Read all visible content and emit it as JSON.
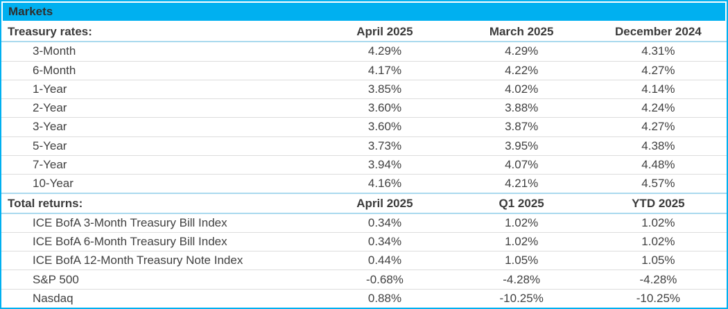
{
  "title": "Markets",
  "colors": {
    "accent": "#00B0F0",
    "section_divider": "#A9D9EE",
    "row_divider": "#DCDCDC",
    "text": "#404040"
  },
  "sections": [
    {
      "header": {
        "label": "Treasury rates:",
        "columns": [
          "April 2025",
          "March 2025",
          "December 2024"
        ]
      },
      "rows": [
        {
          "label": "3-Month",
          "values": [
            "4.29%",
            "4.29%",
            "4.31%"
          ]
        },
        {
          "label": "6-Month",
          "values": [
            "4.17%",
            "4.22%",
            "4.27%"
          ]
        },
        {
          "label": "1-Year",
          "values": [
            "3.85%",
            "4.02%",
            "4.14%"
          ]
        },
        {
          "label": "2-Year",
          "values": [
            "3.60%",
            "3.88%",
            "4.24%"
          ]
        },
        {
          "label": "3-Year",
          "values": [
            "3.60%",
            "3.87%",
            "4.27%"
          ]
        },
        {
          "label": "5-Year",
          "values": [
            "3.73%",
            "3.95%",
            "4.38%"
          ]
        },
        {
          "label": "7-Year",
          "values": [
            "3.94%",
            "4.07%",
            "4.48%"
          ]
        },
        {
          "label": "10-Year",
          "values": [
            "4.16%",
            "4.21%",
            "4.57%"
          ]
        }
      ]
    },
    {
      "header": {
        "label": "Total returns:",
        "columns": [
          "April 2025",
          "Q1 2025",
          "YTD 2025"
        ]
      },
      "rows": [
        {
          "label": "ICE BofA 3-Month Treasury Bill Index",
          "values": [
            "0.34%",
            "1.02%",
            "1.02%"
          ]
        },
        {
          "label": "ICE BofA 6-Month Treasury Bill Index",
          "values": [
            "0.34%",
            "1.02%",
            "1.02%"
          ]
        },
        {
          "label": "ICE BofA 12-Month Treasury Note Index",
          "values": [
            "0.44%",
            "1.05%",
            "1.05%"
          ]
        },
        {
          "label": "S&P 500",
          "values": [
            "-0.68%",
            "-4.28%",
            "-4.28%"
          ]
        },
        {
          "label": "Nasdaq",
          "values": [
            "0.88%",
            "-10.25%",
            "-10.25%"
          ]
        }
      ]
    }
  ],
  "chart_data": [
    {
      "type": "table",
      "title": "Treasury rates",
      "columns": [
        "",
        "April 2025",
        "March 2025",
        "December 2024"
      ],
      "rows": [
        [
          "3-Month",
          "4.29%",
          "4.29%",
          "4.31%"
        ],
        [
          "6-Month",
          "4.17%",
          "4.22%",
          "4.27%"
        ],
        [
          "1-Year",
          "3.85%",
          "4.02%",
          "4.14%"
        ],
        [
          "2-Year",
          "3.60%",
          "3.88%",
          "4.24%"
        ],
        [
          "3-Year",
          "3.60%",
          "3.87%",
          "4.27%"
        ],
        [
          "5-Year",
          "3.73%",
          "3.95%",
          "4.38%"
        ],
        [
          "7-Year",
          "3.94%",
          "4.07%",
          "4.48%"
        ],
        [
          "10-Year",
          "4.16%",
          "4.21%",
          "4.57%"
        ]
      ]
    },
    {
      "type": "table",
      "title": "Total returns",
      "columns": [
        "",
        "April 2025",
        "Q1 2025",
        "YTD 2025"
      ],
      "rows": [
        [
          "ICE BofA 3-Month Treasury Bill Index",
          "0.34%",
          "1.02%",
          "1.02%"
        ],
        [
          "ICE BofA 6-Month Treasury Bill Index",
          "0.34%",
          "1.02%",
          "1.02%"
        ],
        [
          "ICE BofA 12-Month Treasury Note Index",
          "0.44%",
          "1.05%",
          "1.05%"
        ],
        [
          "S&P 500",
          "-0.68%",
          "-4.28%",
          "-4.28%"
        ],
        [
          "Nasdaq",
          "0.88%",
          "-10.25%",
          "-10.25%"
        ]
      ]
    }
  ]
}
